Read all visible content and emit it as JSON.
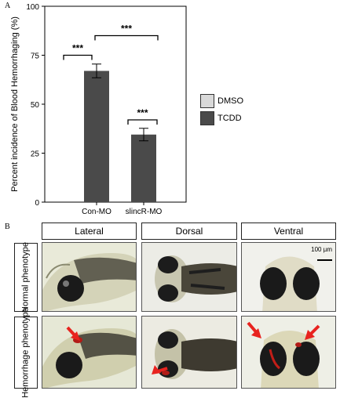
{
  "panel_a_letter": "A",
  "panel_b_letter": "B",
  "chart_data": {
    "type": "bar",
    "ylabel": "Percent incidence of Blood Hemorrhaging (%)",
    "xlabel": "",
    "ylim": [
      0,
      100
    ],
    "yticks": [
      0,
      25,
      50,
      75,
      100
    ],
    "categories": [
      "Con-MO",
      "slincR-MO"
    ],
    "series": [
      {
        "name": "DMSO",
        "color": "#d9d9d9",
        "values": [
          0,
          0
        ]
      },
      {
        "name": "TCDD",
        "color": "#4a4a4a",
        "values": [
          67,
          34.5
        ],
        "errors": [
          3.5,
          3.2
        ]
      }
    ],
    "significance": [
      "***",
      "***",
      "***"
    ],
    "legend_position": "right"
  },
  "legend": [
    {
      "label": "DMSO",
      "color": "#d9d9d9"
    },
    {
      "label": "TCDD",
      "color": "#4a4a4a"
    }
  ],
  "panel_b": {
    "columns": [
      "Lateral",
      "Dorsal",
      "Ventral"
    ],
    "rows": [
      "Normal phenotype",
      "Hemorrhage phenotype"
    ],
    "scale_bar": "100 µm",
    "arrow_color": "#e8231f"
  }
}
